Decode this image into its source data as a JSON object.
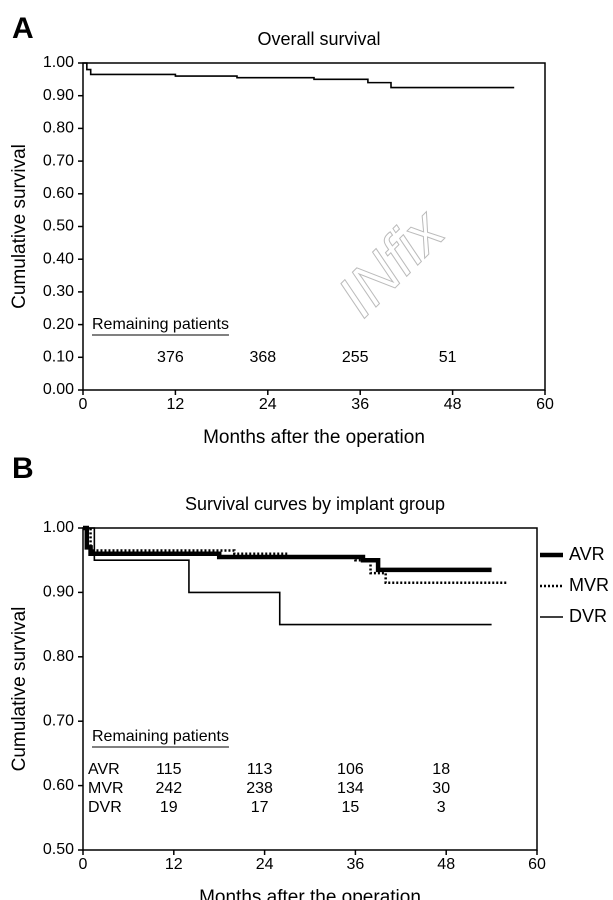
{
  "chart_data": [
    {
      "type": "line",
      "panel_label": "A",
      "title": "Overall survival",
      "x_label": "Months after the operation",
      "y_label": "Cumulative survival",
      "xlim": [
        0,
        60
      ],
      "xticks": [
        0,
        12,
        24,
        36,
        48,
        60
      ],
      "ylim": [
        0,
        1
      ],
      "yticks": [
        {
          "value": 0,
          "label": "0.00"
        },
        {
          "value": 0.1,
          "label": "0.10"
        },
        {
          "value": 0.2,
          "label": "0.20"
        },
        {
          "value": 0.3,
          "label": "0.30"
        },
        {
          "value": 0.4,
          "label": "0.40"
        },
        {
          "value": 0.5,
          "label": "0.50"
        },
        {
          "value": 0.6,
          "label": "0.60"
        },
        {
          "value": 0.7,
          "label": "0.70"
        },
        {
          "value": 0.8,
          "label": "0.80"
        },
        {
          "value": 0.9,
          "label": "0.90"
        },
        {
          "value": 1,
          "label": "1.00"
        }
      ],
      "series": [
        {
          "color": "#000000",
          "line_style": "thin",
          "x": [
            0,
            0.5,
            1,
            12,
            20,
            30,
            37,
            40,
            56
          ],
          "values": [
            1.0,
            0.98,
            0.965,
            0.96,
            0.955,
            0.95,
            0.94,
            0.925,
            0.925
          ]
        }
      ],
      "remaining_patients": {
        "label": "Remaining patients",
        "rows": [
          {
            "counts": [
              376,
              368,
              255,
              51
            ]
          }
        ]
      },
      "watermark": "INfix"
    },
    {
      "type": "line",
      "panel_label": "B",
      "title": "Survival curves by implant group",
      "x_label": "Months after the operation",
      "y_label": "Cumulative survival",
      "xlim": [
        0,
        60
      ],
      "xticks": [
        0,
        12,
        24,
        36,
        48,
        60
      ],
      "ylim": [
        0.5,
        1
      ],
      "yticks": [
        {
          "value": 0.5,
          "label": "0.50"
        },
        {
          "value": 0.6,
          "label": "0.60"
        },
        {
          "value": 0.7,
          "label": "0.70"
        },
        {
          "value": 0.8,
          "label": "0.80"
        },
        {
          "value": 0.9,
          "label": "0.90"
        },
        {
          "value": 1,
          "label": "1.00"
        }
      ],
      "legend": "right",
      "series": [
        {
          "name": "AVR",
          "color": "#000000",
          "line_style": "thick",
          "x": [
            0,
            0.5,
            1,
            18,
            37,
            39,
            54
          ],
          "values": [
            1.0,
            0.97,
            0.96,
            0.955,
            0.95,
            0.935,
            0.935
          ]
        },
        {
          "name": "MVR",
          "color": "#000000",
          "line_style": "dotted",
          "x": [
            0,
            1,
            20,
            27,
            36,
            38,
            40,
            56
          ],
          "values": [
            1.0,
            0.965,
            0.96,
            0.955,
            0.95,
            0.93,
            0.915,
            0.915
          ]
        },
        {
          "name": "DVR",
          "color": "#000000",
          "line_style": "thin",
          "x": [
            0,
            1.5,
            14,
            26,
            54
          ],
          "values": [
            1.0,
            0.95,
            0.9,
            0.85,
            0.85
          ]
        }
      ],
      "remaining_patients": {
        "label": "Remaining patients",
        "rows": [
          {
            "name": "AVR",
            "counts": [
              115,
              113,
              106,
              18
            ]
          },
          {
            "name": "MVR",
            "counts": [
              242,
              238,
              134,
              30
            ]
          },
          {
            "name": "DVR",
            "counts": [
              19,
              17,
              15,
              3
            ]
          }
        ]
      }
    }
  ]
}
